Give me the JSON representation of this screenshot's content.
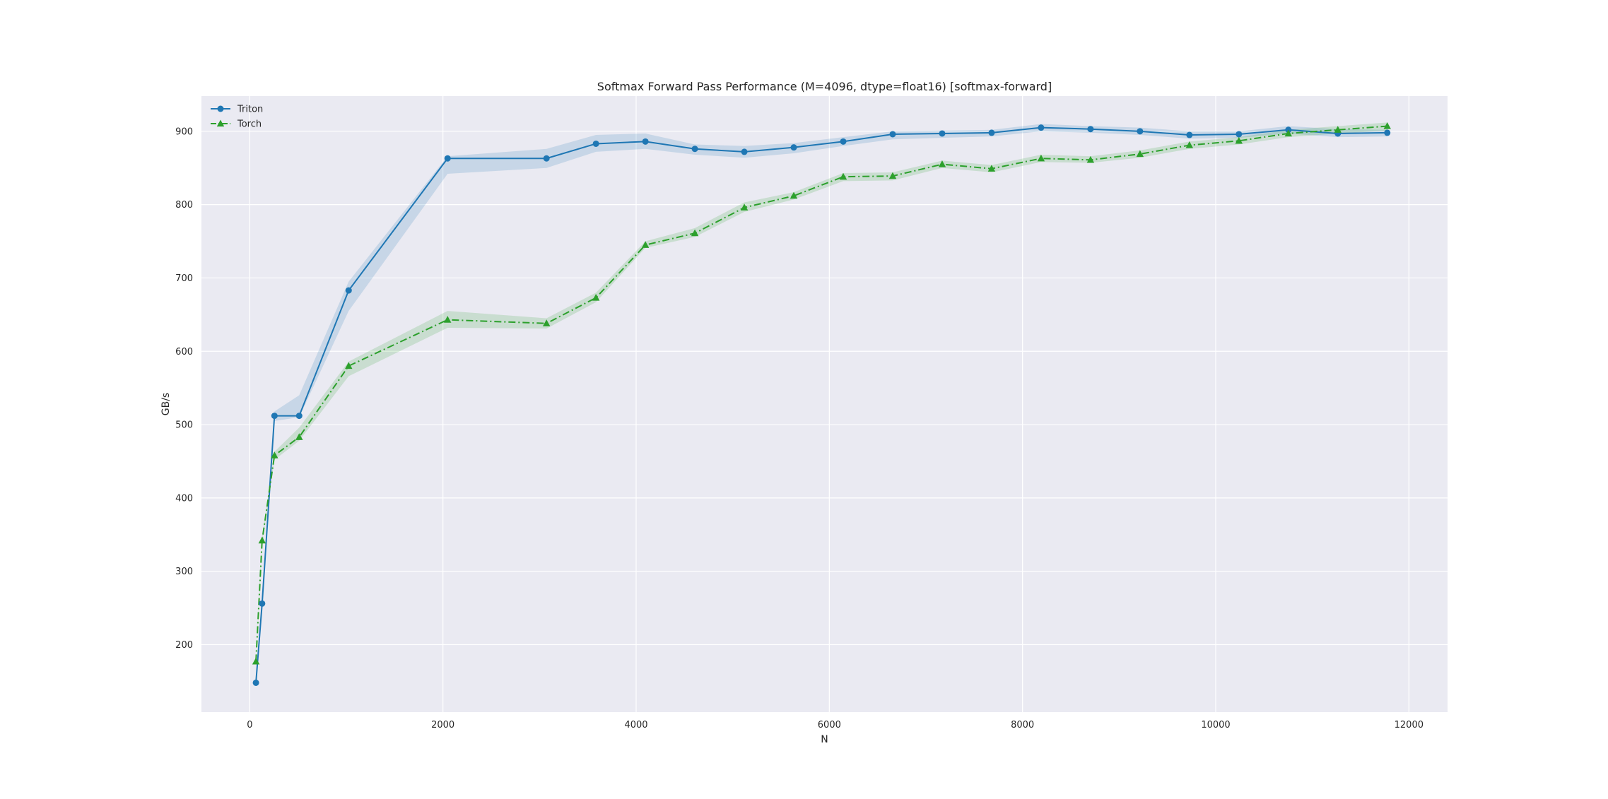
{
  "chart_data": {
    "type": "line",
    "title": "Softmax Forward Pass Performance (M=4096, dtype=float16) [softmax-forward]",
    "xlabel": "N",
    "ylabel": "GB/s",
    "xlim": [
      -500,
      12400
    ],
    "ylim": [
      108,
      948
    ],
    "xticks": [
      0,
      2000,
      4000,
      6000,
      8000,
      10000,
      12000
    ],
    "yticks": [
      200,
      300,
      400,
      500,
      600,
      700,
      800,
      900
    ],
    "grid": true,
    "legend_position": "top-left",
    "x": [
      64,
      128,
      256,
      512,
      1024,
      2048,
      3072,
      3584,
      4096,
      4608,
      5120,
      5632,
      6144,
      6656,
      7168,
      7680,
      8192,
      8704,
      9216,
      9728,
      10240,
      10752,
      11264,
      11776
    ],
    "series": [
      {
        "name": "Triton",
        "color": "#1f77b4",
        "marker": "circle",
        "linestyle": "solid",
        "values": [
          148,
          256,
          512,
          512,
          683,
          863,
          863,
          883,
          886,
          876,
          872,
          878,
          886,
          896,
          897,
          898,
          905,
          903,
          900,
          895,
          896,
          902,
          897,
          898
        ],
        "lower": [
          148,
          256,
          505,
          510,
          655,
          842,
          850,
          872,
          876,
          868,
          864,
          870,
          880,
          889,
          891,
          893,
          900,
          898,
          895,
          890,
          891,
          897,
          892,
          893
        ],
        "upper": [
          150,
          260,
          518,
          540,
          695,
          866,
          876,
          895,
          897,
          882,
          880,
          884,
          892,
          900,
          901,
          902,
          910,
          907,
          905,
          900,
          900,
          907,
          903,
          902
        ]
      },
      {
        "name": "Torch",
        "color": "#2ca02c",
        "marker": "triangle",
        "linestyle": "dashdot",
        "values": [
          177,
          342,
          458,
          483,
          580,
          643,
          638,
          673,
          745,
          761,
          796,
          812,
          838,
          839,
          855,
          849,
          863,
          861,
          869,
          881,
          887,
          897,
          902,
          907
        ],
        "lower": [
          175,
          338,
          452,
          478,
          566,
          632,
          631,
          667,
          741,
          756,
          790,
          807,
          832,
          833,
          850,
          844,
          858,
          857,
          864,
          876,
          882,
          892,
          897,
          901
        ],
        "upper": [
          180,
          346,
          463,
          496,
          586,
          655,
          645,
          680,
          750,
          768,
          803,
          817,
          843,
          844,
          860,
          854,
          868,
          866,
          874,
          886,
          892,
          902,
          907,
          912
        ]
      }
    ]
  }
}
